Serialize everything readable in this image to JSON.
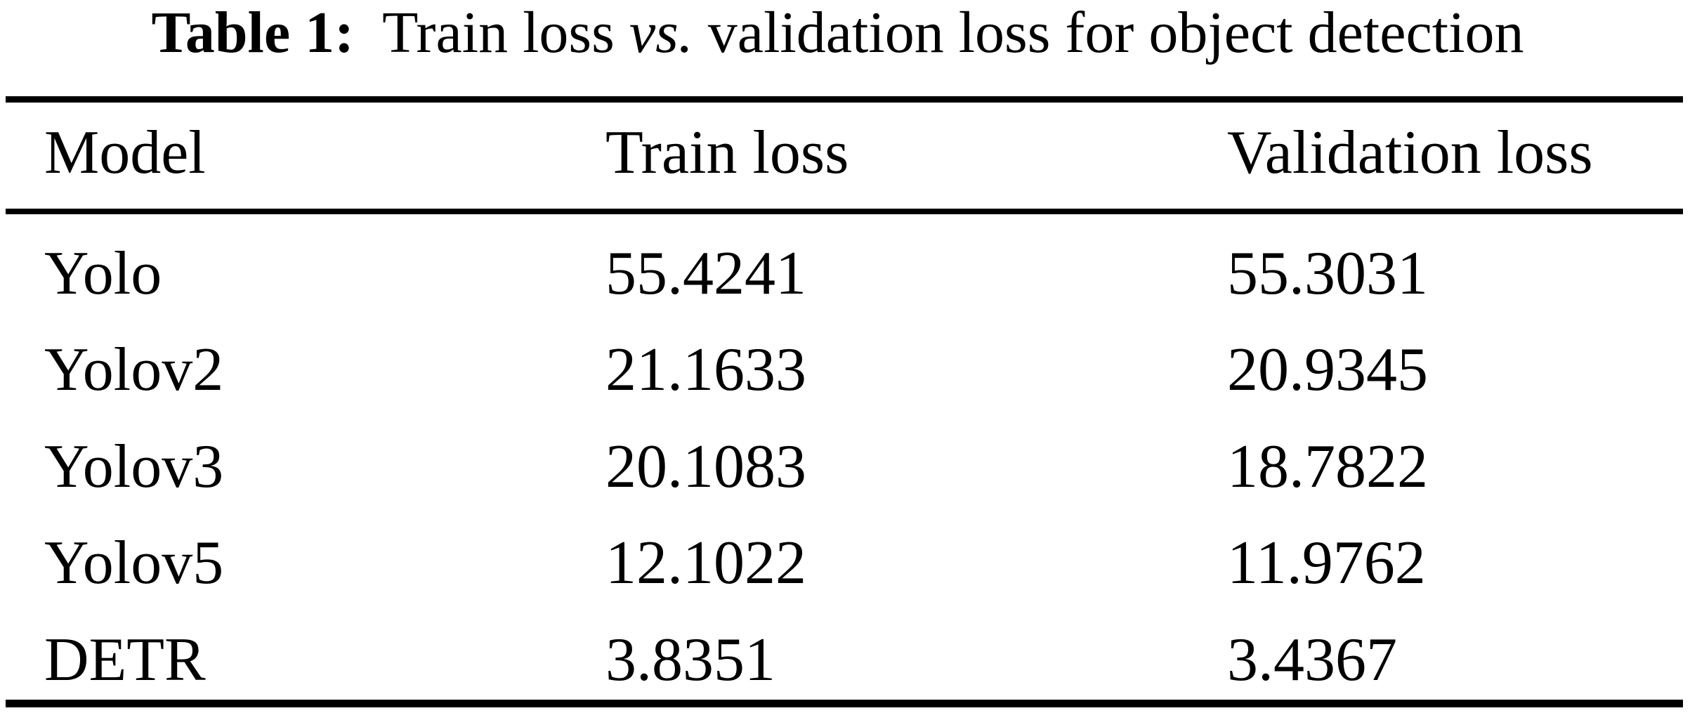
{
  "caption": {
    "label": "Table 1:",
    "text_before_vs": "Train loss",
    "vs_text": "vs.",
    "text_after_vs": "validation loss for object detection"
  },
  "table": {
    "columns": [
      "Model",
      "Train loss",
      "Validation loss"
    ],
    "rows": [
      {
        "model": "Yolo",
        "train": "55.4241",
        "val": "55.3031"
      },
      {
        "model": "Yolov2",
        "train": "21.1633",
        "val": "20.9345"
      },
      {
        "model": "Yolov3",
        "train": "20.1083",
        "val": "18.7822"
      },
      {
        "model": "Yolov5",
        "train": "12.1022",
        "val": "11.9762"
      },
      {
        "model": "DETR",
        "train": "3.8351",
        "val": "3.4367"
      }
    ]
  },
  "colors": {
    "background": "#ffffff",
    "text": "#000000",
    "rule": "#000000"
  },
  "chart_data": {
    "type": "table",
    "title": "Table 1: Train loss vs. validation loss for object detection",
    "columns": [
      "Model",
      "Train loss",
      "Validation loss"
    ],
    "rows": [
      [
        "Yolo",
        55.4241,
        55.3031
      ],
      [
        "Yolov2",
        21.1633,
        20.9345
      ],
      [
        "Yolov3",
        20.1083,
        18.7822
      ],
      [
        "Yolov5",
        12.1022,
        11.9762
      ],
      [
        "DETR",
        3.8351,
        3.4367
      ]
    ]
  }
}
